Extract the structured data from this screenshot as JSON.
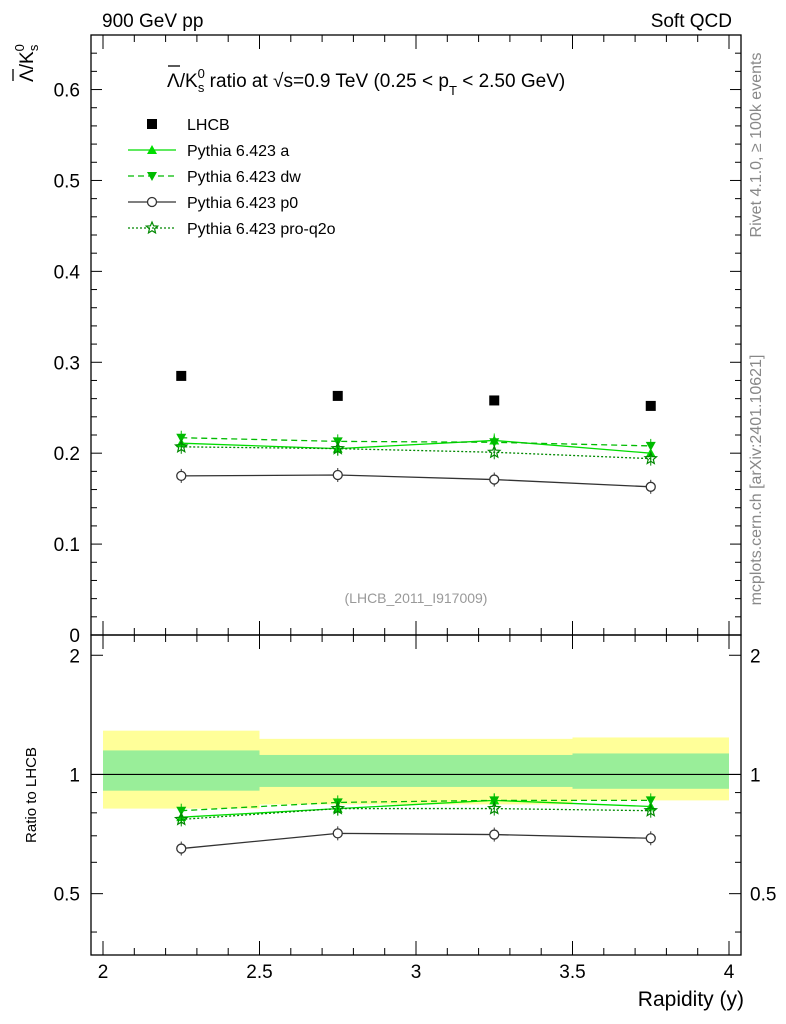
{
  "header": {
    "left": "900 GeV pp",
    "right": "Soft QCD"
  },
  "side": {
    "rivet": "Rivet 4.1.0, ≥ 100k events",
    "mcplots": "mcplots.cern.ch [arXiv:2401.10621]"
  },
  "chart_data": {
    "type": "scatter",
    "title_parts": {
      "lead": "Λ/K",
      "sup": "0",
      "sub": "s",
      "mid1": " ratio at ",
      "sqrt": "√",
      "mid2": "s=0.9 TeV (0.25 < p",
      "pt_sub": "T",
      "tail": " < 2.50 GeV)"
    },
    "ylabel_parts": {
      "lead": "Λ/K",
      "sup": "0",
      "sub": "s"
    },
    "xlabel": "Rapidity (y)",
    "ratio_ylabel": "Ratio to LHCB",
    "watermark": "(LHCB_2011_I917009)",
    "xlim": [
      2,
      4
    ],
    "ylim": [
      0,
      0.66
    ],
    "ratio_ylim": [
      0.35,
      2.25
    ],
    "x_ticks": [
      "2",
      "2.5",
      "3",
      "3.5",
      "4"
    ],
    "y_ticks": [
      "0",
      "0.1",
      "0.2",
      "0.3",
      "0.4",
      "0.5",
      "0.6"
    ],
    "ratio_ticks": [
      "0.5",
      "1",
      "2"
    ],
    "x": [
      2.25,
      2.75,
      3.25,
      3.75
    ],
    "bin_edges": [
      2.0,
      2.5,
      3.0,
      3.5,
      4.0
    ],
    "series": [
      {
        "name": "LHCB",
        "style": "data",
        "color": "#000000",
        "values": [
          0.285,
          0.263,
          0.258,
          0.252
        ],
        "ratio": [
          1.0,
          1.0,
          1.0,
          1.0
        ]
      },
      {
        "name": "Pythia 6.423 a",
        "style": "solid",
        "marker": "triangle-up",
        "color": "#00dd00",
        "values": [
          0.211,
          0.205,
          0.214,
          0.2
        ],
        "ratio": [
          0.78,
          0.82,
          0.86,
          0.83
        ]
      },
      {
        "name": "Pythia 6.423 dw",
        "style": "dashed",
        "marker": "triangle-down",
        "color": "#00bb00",
        "values": [
          0.217,
          0.213,
          0.212,
          0.208
        ],
        "ratio": [
          0.81,
          0.85,
          0.86,
          0.86
        ]
      },
      {
        "name": "Pythia 6.423 p0",
        "style": "solid",
        "marker": "circle-open",
        "color": "#333333",
        "values": [
          0.175,
          0.176,
          0.171,
          0.163
        ],
        "ratio": [
          0.65,
          0.71,
          0.705,
          0.69
        ]
      },
      {
        "name": "Pythia 6.423 pro-q2o",
        "style": "dotted",
        "marker": "star-open",
        "color": "#008800",
        "values": [
          0.207,
          0.205,
          0.201,
          0.194
        ],
        "ratio": [
          0.77,
          0.82,
          0.82,
          0.81
        ]
      }
    ],
    "data_uncertainty_bands": [
      {
        "x_range": [
          2.0,
          2.5
        ],
        "inner": [
          0.91,
          1.15
        ],
        "outer": [
          0.82,
          1.29
        ]
      },
      {
        "x_range": [
          2.5,
          3.0
        ],
        "inner": [
          0.93,
          1.12
        ],
        "outer": [
          0.84,
          1.23
        ]
      },
      {
        "x_range": [
          3.0,
          3.5
        ],
        "inner": [
          0.93,
          1.12
        ],
        "outer": [
          0.84,
          1.23
        ]
      },
      {
        "x_range": [
          3.5,
          4.0
        ],
        "inner": [
          0.92,
          1.13
        ],
        "outer": [
          0.86,
          1.24
        ]
      }
    ],
    "colors": {
      "inner_band": "#99ee99",
      "outer_band": "#ffff99"
    }
  }
}
